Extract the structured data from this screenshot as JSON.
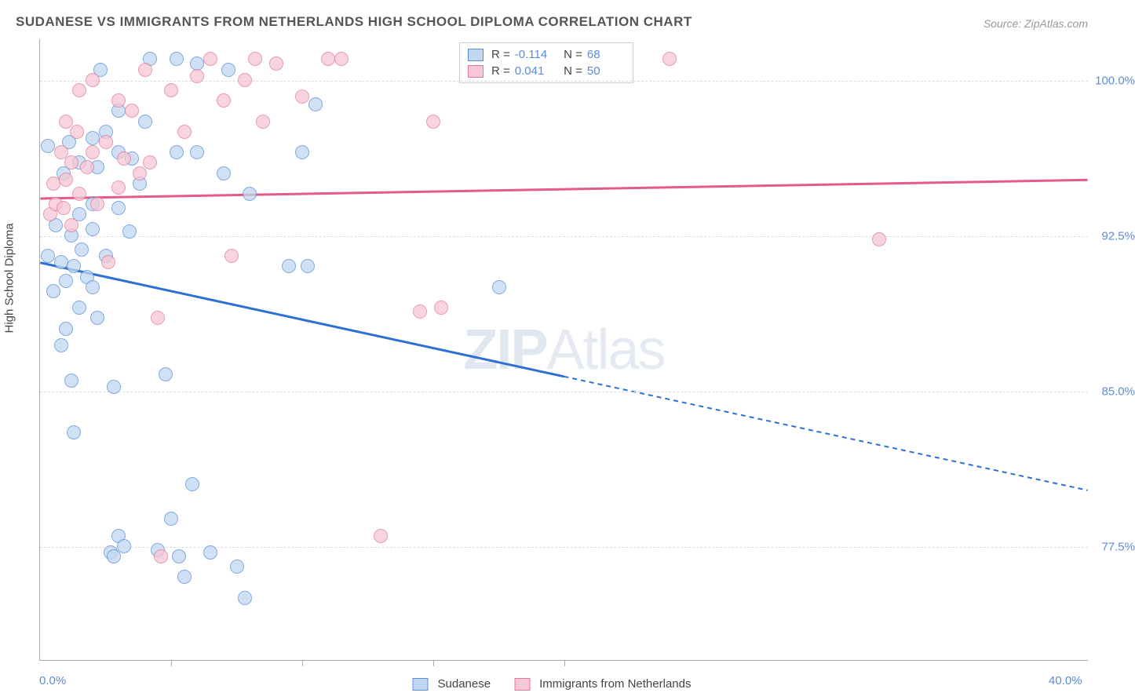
{
  "title": "SUDANESE VS IMMIGRANTS FROM NETHERLANDS HIGH SCHOOL DIPLOMA CORRELATION CHART",
  "source": "Source: ZipAtlas.com",
  "watermark": {
    "part1": "ZIP",
    "part2": "Atlas"
  },
  "yaxis_title": "High School Diploma",
  "chart": {
    "type": "scatter-with-regression",
    "background_color": "#ffffff",
    "grid_color": "#dddddd",
    "axis_color": "#aaaaaa",
    "label_color": "#5b8dd6",
    "text_color": "#444444",
    "xlim": [
      0,
      40
    ],
    "ylim": [
      72,
      102
    ],
    "xlabels": [
      {
        "value": 0,
        "text": "0.0%"
      },
      {
        "value": 40,
        "text": "40.0%"
      }
    ],
    "xticks": [
      5,
      10,
      15,
      20
    ],
    "ylabels": [
      {
        "value": 77.5,
        "text": "77.5%"
      },
      {
        "value": 85.0,
        "text": "85.0%"
      },
      {
        "value": 92.5,
        "text": "92.5%"
      },
      {
        "value": 100.0,
        "text": "100.0%"
      }
    ],
    "point_radius": 9,
    "series": [
      {
        "name": "Sudanese",
        "fill_color": "#c2d7f2",
        "stroke_color": "#5b8dd6",
        "line_color": "#2e6fd1",
        "R": "-0.114",
        "N": "68",
        "regression": {
          "x1": 0,
          "y1": 91.2,
          "x2": 20,
          "y2": 85.7,
          "x2_ext": 40,
          "y2_ext": 80.2
        },
        "points": [
          [
            0.3,
            96.8
          ],
          [
            0.3,
            91.5
          ],
          [
            0.5,
            89.8
          ],
          [
            0.6,
            93.0
          ],
          [
            0.8,
            91.2
          ],
          [
            0.8,
            87.2
          ],
          [
            0.9,
            95.5
          ],
          [
            1.0,
            90.3
          ],
          [
            1.0,
            88.0
          ],
          [
            1.1,
            97.0
          ],
          [
            1.2,
            92.5
          ],
          [
            1.2,
            85.5
          ],
          [
            1.3,
            91.0
          ],
          [
            1.3,
            83.0
          ],
          [
            1.5,
            96.0
          ],
          [
            1.5,
            93.5
          ],
          [
            1.5,
            89.0
          ],
          [
            1.6,
            91.8
          ],
          [
            1.8,
            90.5
          ],
          [
            2.0,
            97.2
          ],
          [
            2.0,
            94.0
          ],
          [
            2.0,
            92.8
          ],
          [
            2.0,
            90.0
          ],
          [
            2.2,
            95.8
          ],
          [
            2.2,
            88.5
          ],
          [
            2.3,
            100.5
          ],
          [
            2.5,
            97.5
          ],
          [
            2.5,
            91.5
          ],
          [
            2.7,
            77.2
          ],
          [
            2.8,
            77.0
          ],
          [
            2.8,
            85.2
          ],
          [
            3.0,
            98.5
          ],
          [
            3.0,
            96.5
          ],
          [
            3.0,
            93.8
          ],
          [
            3.0,
            78.0
          ],
          [
            3.2,
            77.5
          ],
          [
            3.4,
            92.7
          ],
          [
            3.5,
            96.2
          ],
          [
            3.8,
            95.0
          ],
          [
            4.0,
            98.0
          ],
          [
            4.2,
            101.0
          ],
          [
            4.5,
            77.3
          ],
          [
            4.8,
            85.8
          ],
          [
            5.0,
            78.8
          ],
          [
            5.2,
            96.5
          ],
          [
            5.2,
            101.0
          ],
          [
            5.3,
            77.0
          ],
          [
            5.5,
            76.0
          ],
          [
            5.8,
            80.5
          ],
          [
            6.0,
            100.8
          ],
          [
            6.0,
            96.5
          ],
          [
            6.5,
            77.2
          ],
          [
            7.0,
            95.5
          ],
          [
            7.2,
            100.5
          ],
          [
            7.5,
            76.5
          ],
          [
            7.8,
            75.0
          ],
          [
            8.0,
            94.5
          ],
          [
            9.5,
            91.0
          ],
          [
            10.0,
            96.5
          ],
          [
            10.2,
            91.0
          ],
          [
            10.5,
            98.8
          ],
          [
            17.5,
            90.0
          ]
        ]
      },
      {
        "name": "Immigrants from Netherlands",
        "fill_color": "#f6c7d4",
        "stroke_color": "#e07a9a",
        "line_color": "#e55a8a",
        "R": "0.041",
        "N": "50",
        "regression": {
          "x1": 0,
          "y1": 94.3,
          "x2": 40,
          "y2": 95.2
        },
        "points": [
          [
            0.4,
            93.5
          ],
          [
            0.5,
            95.0
          ],
          [
            0.6,
            94.0
          ],
          [
            0.8,
            96.5
          ],
          [
            0.9,
            93.8
          ],
          [
            1.0,
            98.0
          ],
          [
            1.0,
            95.2
          ],
          [
            1.2,
            96.0
          ],
          [
            1.2,
            93.0
          ],
          [
            1.4,
            97.5
          ],
          [
            1.5,
            99.5
          ],
          [
            1.5,
            94.5
          ],
          [
            1.8,
            95.8
          ],
          [
            2.0,
            100.0
          ],
          [
            2.0,
            96.5
          ],
          [
            2.2,
            94.0
          ],
          [
            2.5,
            97.0
          ],
          [
            2.6,
            91.2
          ],
          [
            3.0,
            99.0
          ],
          [
            3.0,
            94.8
          ],
          [
            3.2,
            96.2
          ],
          [
            3.5,
            98.5
          ],
          [
            3.8,
            95.5
          ],
          [
            4.0,
            100.5
          ],
          [
            4.2,
            96.0
          ],
          [
            4.5,
            88.5
          ],
          [
            4.6,
            77.0
          ],
          [
            5.0,
            99.5
          ],
          [
            5.5,
            97.5
          ],
          [
            6.0,
            100.2
          ],
          [
            6.5,
            101.0
          ],
          [
            7.0,
            99.0
          ],
          [
            7.3,
            91.5
          ],
          [
            7.8,
            100.0
          ],
          [
            8.2,
            101.0
          ],
          [
            8.5,
            98.0
          ],
          [
            9.0,
            100.8
          ],
          [
            10.0,
            99.2
          ],
          [
            11.0,
            101.0
          ],
          [
            11.5,
            101.0
          ],
          [
            13.0,
            78.0
          ],
          [
            14.5,
            88.8
          ],
          [
            15.0,
            98.0
          ],
          [
            15.3,
            89.0
          ],
          [
            24.0,
            101.0
          ],
          [
            32.0,
            92.3
          ]
        ]
      }
    ]
  },
  "legend_bottom": [
    {
      "label": "Sudanese",
      "fill": "#c2d7f2",
      "stroke": "#5b8dd6"
    },
    {
      "label": "Immigrants from Netherlands",
      "fill": "#f6c7d4",
      "stroke": "#e07a9a"
    }
  ]
}
